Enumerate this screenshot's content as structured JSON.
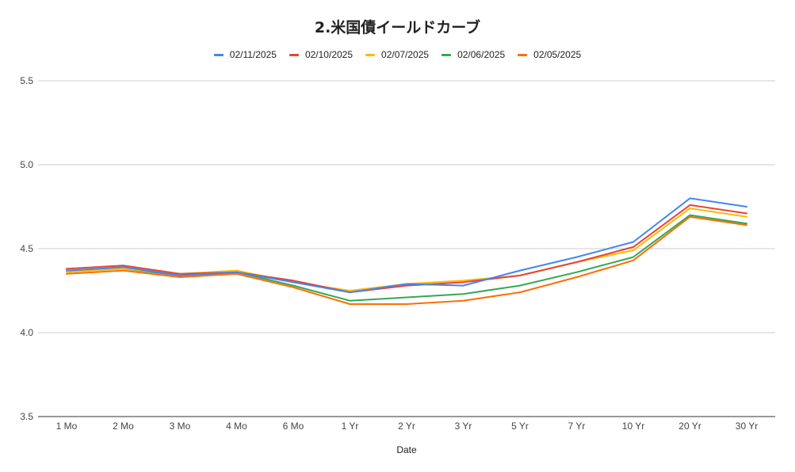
{
  "chart_data": {
    "type": "line",
    "title": "2.米国債イールドカーブ",
    "xlabel": "Date",
    "ylabel": "",
    "ylim": [
      3.5,
      5.5
    ],
    "yticks": [
      "3.5",
      "4.0",
      "4.5",
      "5.0",
      "5.5"
    ],
    "grid": true,
    "legend_position": "top",
    "categories": [
      "1 Mo",
      "2 Mo",
      "3 Mo",
      "4 Mo",
      "6 Mo",
      "1 Yr",
      "2 Yr",
      "3 Yr",
      "5 Yr",
      "7 Yr",
      "10 Yr",
      "20 Yr",
      "30 Yr"
    ],
    "series": [
      {
        "name": "02/11/2025",
        "color": "#4285f4",
        "values": [
          4.37,
          4.39,
          4.34,
          4.36,
          4.3,
          4.24,
          4.29,
          4.28,
          4.37,
          4.45,
          4.54,
          4.8,
          4.75
        ]
      },
      {
        "name": "02/10/2025",
        "color": "#ea4335",
        "values": [
          4.38,
          4.4,
          4.35,
          4.36,
          4.31,
          4.24,
          4.28,
          4.3,
          4.34,
          4.42,
          4.51,
          4.76,
          4.71
        ]
      },
      {
        "name": "02/07/2025",
        "color": "#fbbc04",
        "values": [
          4.36,
          4.38,
          4.35,
          4.37,
          4.3,
          4.25,
          4.29,
          4.31,
          4.34,
          4.42,
          4.49,
          4.74,
          4.69
        ]
      },
      {
        "name": "02/06/2025",
        "color": "#34a853",
        "values": [
          4.37,
          4.38,
          4.34,
          4.36,
          4.28,
          4.19,
          4.21,
          4.23,
          4.28,
          4.36,
          4.45,
          4.7,
          4.65
        ]
      },
      {
        "name": "02/05/2025",
        "color": "#ff6d01",
        "values": [
          4.35,
          4.37,
          4.33,
          4.35,
          4.27,
          4.17,
          4.17,
          4.19,
          4.24,
          4.33,
          4.43,
          4.69,
          4.64
        ]
      }
    ]
  }
}
